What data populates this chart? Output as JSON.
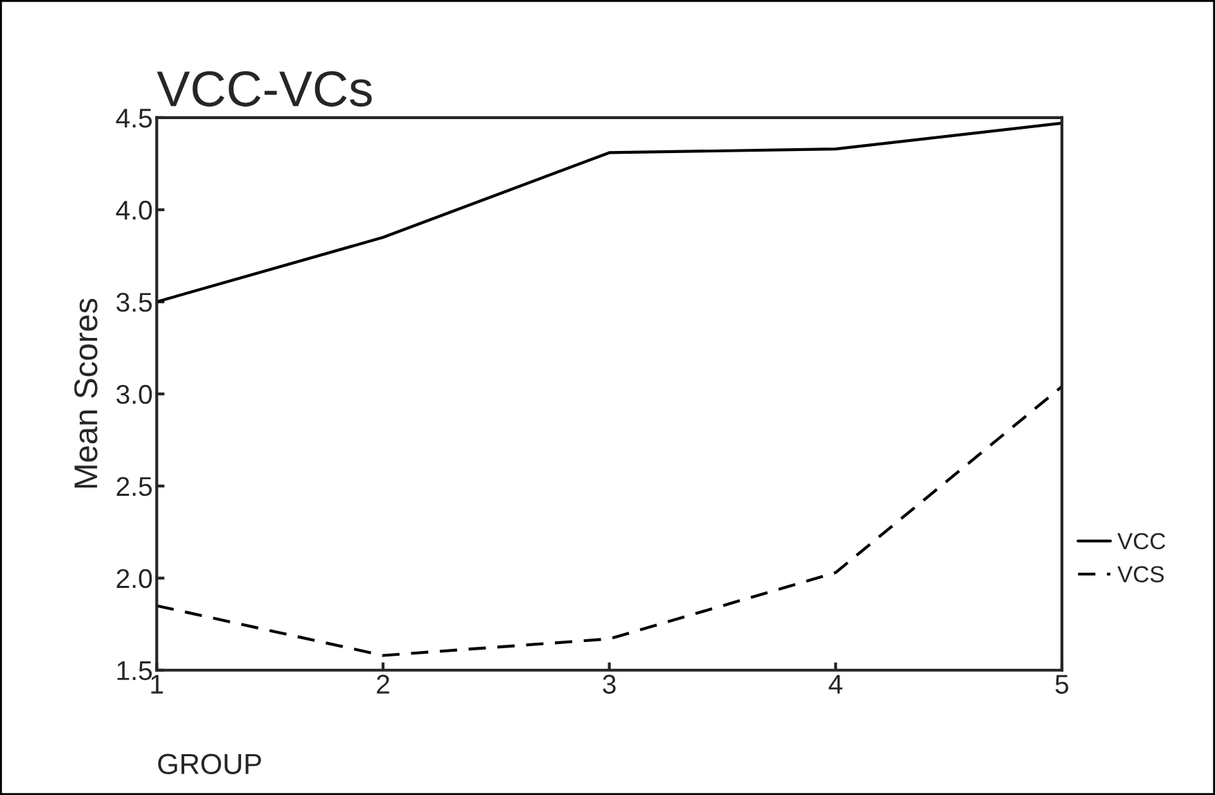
{
  "chart_data": {
    "type": "line",
    "title": "VCC-VCs",
    "xlabel": "GROUP",
    "ylabel": "Mean Scores",
    "x": [
      1,
      2,
      3,
      4,
      5
    ],
    "series": [
      {
        "name": "VCC",
        "color": "#000000",
        "line_style": "solid",
        "values": [
          3.5,
          3.85,
          4.31,
          4.33,
          4.47
        ]
      },
      {
        "name": "VCS",
        "color": "#000000",
        "line_style": "dashed",
        "values": [
          1.85,
          1.58,
          1.67,
          2.03,
          3.04
        ]
      }
    ],
    "xlim": [
      1,
      5
    ],
    "xticks": [
      1,
      2,
      3,
      4,
      5
    ],
    "ylim": [
      1.5,
      4.5
    ],
    "yticks": [
      {
        "value": 1.5,
        "label": "1.5"
      },
      {
        "value": 2.0,
        "label": "2.0"
      },
      {
        "value": 2.5,
        "label": "2.5"
      },
      {
        "value": 3.0,
        "label": "3.0"
      },
      {
        "value": 3.5,
        "label": "3.5"
      },
      {
        "value": 4.0,
        "label": "4.0"
      },
      {
        "value": 4.5,
        "label": "4.5"
      }
    ],
    "grid": false,
    "legend": "right",
    "marker": "none"
  }
}
